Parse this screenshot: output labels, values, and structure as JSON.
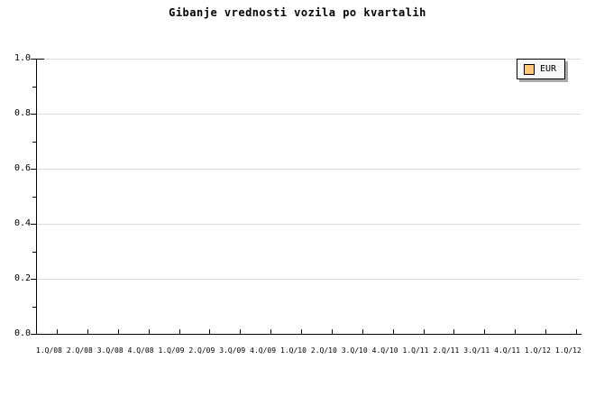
{
  "title": "Gibanje vrednosti vozila po kvartalih",
  "legend": {
    "position": "top-right",
    "items": [
      {
        "label": "EUR",
        "swatch_color": "#FFC878"
      }
    ]
  },
  "axes": {
    "y_tick_labels": [
      "1.0",
      "0.8",
      "0.6",
      "0.4",
      "0.2",
      "0.0"
    ],
    "x_tick_labels": [
      "1.Q/08",
      "2.Q/08",
      "3.Q/08",
      "4.Q/08",
      "1.Q/09",
      "2.Q/09",
      "3.Q/09",
      "4.Q/09",
      "1.Q/10",
      "2.Q/10",
      "3.Q/10",
      "4.Q/10",
      "1.Q/11",
      "2.Q/11",
      "3.Q/11",
      "4.Q/11",
      "1.Q/12",
      "1.Q/12"
    ]
  },
  "colors": {
    "background": "#FFFFFF",
    "axis": "#000000",
    "grid": "#DCDCDC",
    "text": "#000000",
    "legend_background": "#F7F7F7",
    "legend_shadow": "#A9A9A9",
    "series_eur": "#FFC878"
  },
  "chart_data": {
    "type": "line",
    "title": "Gibanje vrednosti vozila po kvartalih",
    "categories": [
      "1.Q/08",
      "2.Q/08",
      "3.Q/08",
      "4.Q/08",
      "1.Q/09",
      "2.Q/09",
      "3.Q/09",
      "4.Q/09",
      "1.Q/10",
      "2.Q/10",
      "3.Q/10",
      "4.Q/10",
      "1.Q/11",
      "2.Q/11",
      "3.Q/11",
      "4.Q/11",
      "1.Q/12",
      "1.Q/12"
    ],
    "series": [
      {
        "name": "EUR",
        "color": "#FFC878",
        "values": []
      }
    ],
    "xlabel": "",
    "ylabel": "",
    "ylim": [
      0.0,
      1.0
    ],
    "y_major_tick_step": 0.2,
    "y_minor_tick_step": 0.1,
    "grid": "horizontal-major-only",
    "legend_position": "top-right",
    "plot_empty": true
  }
}
